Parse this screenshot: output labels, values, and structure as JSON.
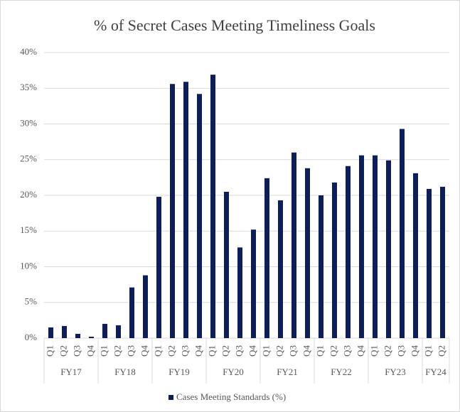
{
  "chart_data": {
    "type": "bar",
    "title": "% of Secret Cases Meeting Timeliness Goals",
    "series": [
      {
        "name": "Cases Meeting Standards (%)",
        "color": "#0e1e5b"
      }
    ],
    "groups": [
      {
        "name": "FY17",
        "categories": [
          "Q1",
          "Q2",
          "Q3",
          "Q4"
        ],
        "values": [
          1.5,
          1.7,
          0.6,
          0.2
        ]
      },
      {
        "name": "FY18",
        "categories": [
          "Q1",
          "Q2",
          "Q3",
          "Q4"
        ],
        "values": [
          2.0,
          1.8,
          7.1,
          8.8
        ]
      },
      {
        "name": "FY19",
        "categories": [
          "Q1",
          "Q2",
          "Q3",
          "Q4"
        ],
        "values": [
          19.8,
          35.6,
          35.9,
          34.2
        ]
      },
      {
        "name": "FY20",
        "categories": [
          "Q1",
          "Q2",
          "Q3",
          "Q4"
        ],
        "values": [
          36.9,
          20.5,
          12.7,
          15.2
        ]
      },
      {
        "name": "FY21",
        "categories": [
          "Q1",
          "Q2",
          "Q3",
          "Q4"
        ],
        "values": [
          22.4,
          19.3,
          26.0,
          23.8
        ]
      },
      {
        "name": "FY22",
        "categories": [
          "Q1",
          "Q2",
          "Q3",
          "Q4"
        ],
        "values": [
          20.0,
          21.8,
          24.1,
          25.6
        ]
      },
      {
        "name": "FY23",
        "categories": [
          "Q1",
          "Q2",
          "Q3",
          "Q4"
        ],
        "values": [
          25.6,
          24.9,
          29.3,
          23.1
        ]
      },
      {
        "name": "FY24",
        "categories": [
          "Q1",
          "Q2"
        ],
        "values": [
          20.9,
          21.2
        ]
      }
    ],
    "ylim": [
      0,
      40
    ],
    "yticks": [
      {
        "value": 0,
        "label": "0%"
      },
      {
        "value": 5,
        "label": "5%"
      },
      {
        "value": 10,
        "label": "10%"
      },
      {
        "value": 15,
        "label": "15%"
      },
      {
        "value": 20,
        "label": "20%"
      },
      {
        "value": 25,
        "label": "25%"
      },
      {
        "value": 30,
        "label": "30%"
      },
      {
        "value": 35,
        "label": "35%"
      },
      {
        "value": 40,
        "label": "40%"
      }
    ],
    "grid": true,
    "legend": "bottom"
  }
}
